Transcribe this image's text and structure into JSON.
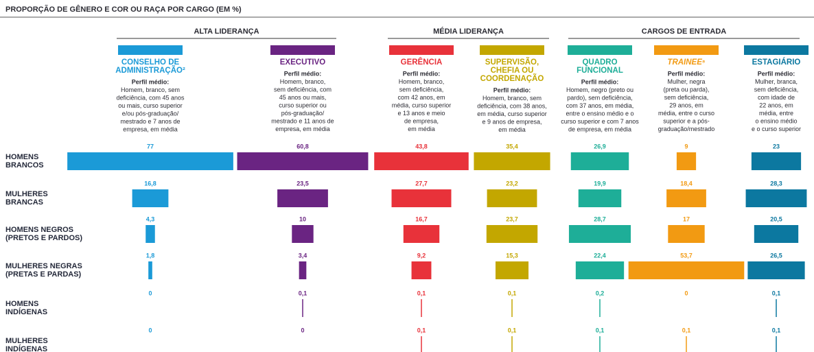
{
  "chart_data": {
    "type": "bar-matrix",
    "title": "PROPORÇÃO DE GÊNERO E COR OU RAÇA POR CARGO (EM %)",
    "groups": [
      "ALTA LIDERANÇA",
      "MÉDIA LIDERANÇA",
      "CARGOS DE ENTRADA"
    ],
    "rows": [
      {
        "lines": [
          "HOMENS",
          "BRANCOS"
        ]
      },
      {
        "lines": [
          "MULHERES",
          "BRANCAS"
        ]
      },
      {
        "lines": [
          "HOMENS NEGROS",
          "(PRETOS E PARDOS)"
        ]
      },
      {
        "lines": [
          "MULHERES NEGRAS",
          "(PRETAS E PARDAS)"
        ]
      },
      {
        "lines": [
          "HOMENS",
          "INDÍGENAS"
        ]
      },
      {
        "lines": [
          "MULHERES",
          "INDÍGENAS"
        ]
      }
    ],
    "profile_label": "Perfil médio:",
    "series": [
      {
        "name_lines": [
          "CONSELHO DE",
          "ADMINISTRAÇÃO²"
        ],
        "color": "#1b9ad7",
        "profile": [
          "Homem, branco, sem",
          "deficiência, com 45 anos",
          "ou mais, curso superior",
          "e/ou pós-graduação/",
          "mestrado e 7 anos de",
          "empresa, em média"
        ],
        "values": [
          77,
          16.8,
          4.3,
          1.8,
          0,
          0
        ],
        "value_labels": [
          "77",
          "16,8",
          "4,3",
          "1,8",
          "0",
          "0"
        ]
      },
      {
        "name_lines": [
          "EXECUTIVO"
        ],
        "color": "#6a2482",
        "profile": [
          "Homem, branco,",
          "sem deficiência, com",
          "45 anos ou mais,",
          "curso superior ou",
          "pós-graduação/",
          "mestrado e 11 anos de",
          "empresa, em média"
        ],
        "values": [
          60.8,
          23.5,
          10,
          3.4,
          0.1,
          0
        ],
        "value_labels": [
          "60,8",
          "23,5",
          "10",
          "3,4",
          "0,1",
          "0"
        ]
      },
      {
        "name_lines": [
          "GERÊNCIA"
        ],
        "color": "#e8323a",
        "profile": [
          "Homem, branco,",
          "sem deficiência,",
          "com 42 anos, em",
          "média, curso superior",
          "e 13 anos e meio",
          "de empresa,",
          "em média"
        ],
        "values": [
          43.8,
          27.7,
          16.7,
          9.2,
          0.1,
          0.1
        ],
        "value_labels": [
          "43,8",
          "27,7",
          "16,7",
          "9,2",
          "0,1",
          "0,1"
        ]
      },
      {
        "name_lines": [
          "SUPERVISÃO,",
          "CHEFIA OU",
          "COORDENAÇÃO"
        ],
        "color": "#c3a700",
        "profile": [
          "Homem, branco, sem",
          "deficiência, com 38 anos,",
          "em média, curso superior",
          "e 9 anos de empresa,",
          "em média"
        ],
        "values": [
          35.4,
          23.2,
          23.7,
          15.3,
          0.1,
          0.1
        ],
        "value_labels": [
          "35,4",
          "23,2",
          "23,7",
          "15,3",
          "0,1",
          "0,1"
        ]
      },
      {
        "name_lines": [
          "QUADRO",
          "FUNCIONAL"
        ],
        "color": "#1eae98",
        "profile": [
          "Homem, negro (preto ou",
          "pardo), sem deficiência,",
          "com 37 anos, em média,",
          "entre o ensino médio e o",
          "curso superior e com 7 anos",
          "de empresa, em média"
        ],
        "values": [
          26.9,
          19.9,
          28.7,
          22.4,
          0.2,
          0.1
        ],
        "value_labels": [
          "26,9",
          "19,9",
          "28,7",
          "22,4",
          "0,2",
          "0,1"
        ]
      },
      {
        "name_lines": [
          "TRAINEE⁵"
        ],
        "color": "#f29a12",
        "profile": [
          "Mulher, negra",
          "(preta ou parda),",
          "sem deficiência,",
          "29 anos, em",
          "média, entre o curso",
          "superior e a pós-",
          "graduação/mestrado"
        ],
        "values": [
          9,
          18.4,
          17,
          53.7,
          0,
          0.1
        ],
        "value_labels": [
          "9",
          "18,4",
          "17",
          "53,7",
          "0",
          "0,1"
        ]
      },
      {
        "name_lines": [
          "ESTAGIÁRIO"
        ],
        "color": "#0c78a0",
        "profile": [
          "Mulher, branca,",
          "sem deficiência,",
          "com idade de",
          "22 anos, em",
          "média, entre",
          "o ensino médio",
          "e o curso superior"
        ],
        "values": [
          23,
          28.3,
          20.5,
          26.5,
          0.1,
          0.1
        ],
        "value_labels": [
          "23",
          "28,3",
          "20,5",
          "26,5",
          "0,1",
          "0,1"
        ]
      }
    ]
  }
}
